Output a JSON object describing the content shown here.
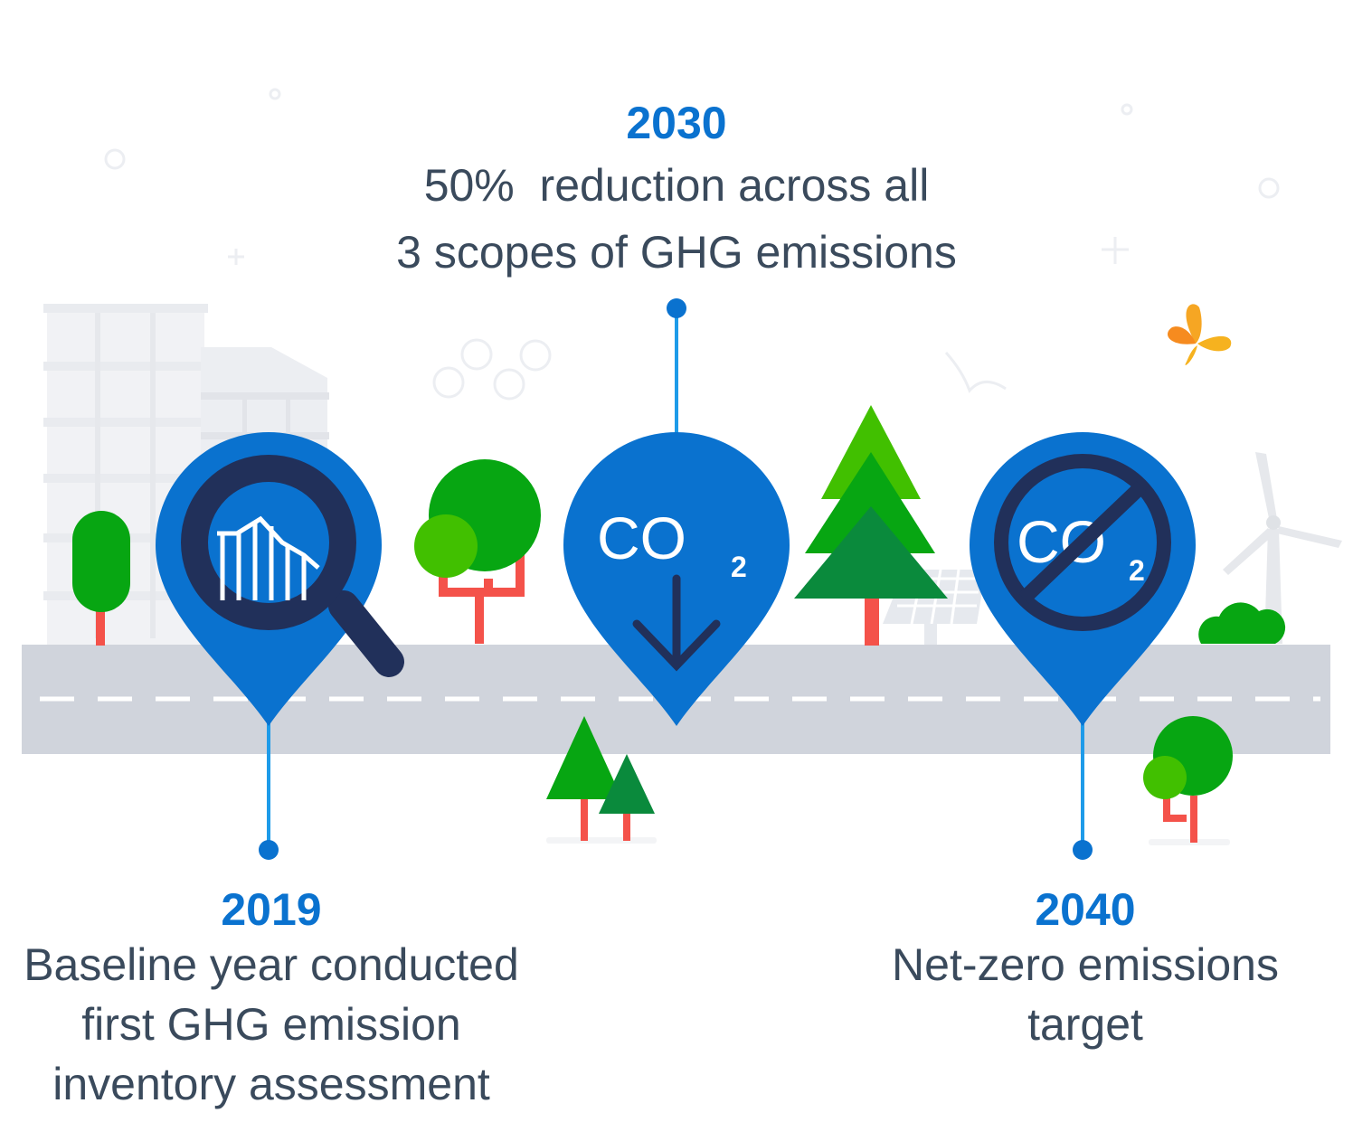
{
  "milestones": [
    {
      "year": "2019",
      "lines": [
        "Baseline year conducted",
        "first GHG emission",
        "inventory assessment"
      ],
      "icon": "magnifier-chart-icon"
    },
    {
      "year": "2030",
      "lines": [
        "50%  reduction across all",
        "3 scopes of GHG emissions"
      ],
      "icon": "co2-down-arrow-icon"
    },
    {
      "year": "2040",
      "lines": [
        "Net-zero emissions",
        "target"
      ],
      "icon": "no-co2-icon"
    }
  ],
  "pin_icons": {
    "co2": "CO",
    "sub": "2"
  },
  "colors": {
    "pin": "#0a72cf",
    "year": "#0a72cf",
    "text": "#3a4a5c",
    "road": "#d0d4dc",
    "tree_green": "#07a612",
    "tree_light": "#41c000",
    "tree_dark": "#0a8a3c",
    "trunk": "#f4524a",
    "dark_navy": "#21305a",
    "butterfly": "#f6a623"
  }
}
